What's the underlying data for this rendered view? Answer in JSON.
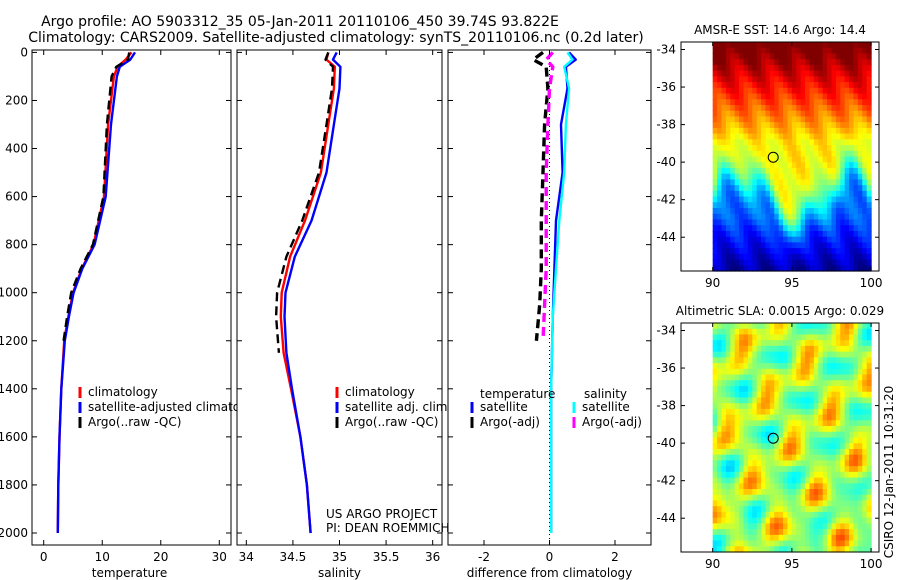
{
  "title_line1": "Argo profile: AO 5903312_35 05-Jan-2011 20110106_450 39.74S 93.822E",
  "title_line2": "Climatology: CARS2009. Satellite-adjusted climatology: synTS_20110106.nc (0.2d later)",
  "side_label": "CSIRO 12-Jan-2011 10:31:20",
  "colors": {
    "climatology": "#ff0000",
    "satellite": "#0000ff",
    "argo": "#000000",
    "satellite_salinity": "#00ffff",
    "argo_salinity": "#ff00ff"
  },
  "chart_data": [
    {
      "type": "line",
      "xlabel": "temperature",
      "ylabel": "",
      "xlim": [
        -2,
        32
      ],
      "ylim": [
        2050,
        -10
      ],
      "xticks": [
        0,
        10,
        20,
        30
      ],
      "yticks": [
        0,
        200,
        400,
        600,
        800,
        1000,
        1200,
        1400,
        1600,
        1800,
        2000
      ],
      "legend": [
        "climatology",
        "satellite-adjusted climatology",
        "Argo(..raw -QC)"
      ],
      "series": [
        {
          "name": "climatology",
          "color": "#ff0000",
          "style": "solid",
          "x": [
            15.0,
            14.0,
            12.6,
            12.0,
            11.0,
            10.3,
            8.5,
            6.5,
            5.0,
            4.2,
            3.5,
            3.0,
            2.7,
            2.5,
            2.4
          ],
          "y": [
            0,
            30,
            60,
            100,
            300,
            600,
            800,
            900,
            1000,
            1100,
            1200,
            1400,
            1600,
            1800,
            2000
          ]
        },
        {
          "name": "satellite-adjusted climatology",
          "color": "#0000ff",
          "style": "solid",
          "x": [
            15.6,
            14.8,
            13.0,
            12.5,
            11.5,
            10.6,
            8.7,
            6.6,
            5.1,
            4.3,
            3.6,
            3.0,
            2.7,
            2.5,
            2.4
          ],
          "y": [
            0,
            30,
            60,
            100,
            300,
            600,
            800,
            900,
            1000,
            1100,
            1200,
            1400,
            1600,
            1800,
            2000
          ]
        },
        {
          "name": "Argo(..raw -QC)",
          "color": "#000000",
          "style": "dashed",
          "x": [
            14.6,
            14.4,
            12.4,
            11.6,
            10.8,
            10.2,
            8.4,
            6.3,
            4.7,
            4.0,
            3.4
          ],
          "y": [
            0,
            30,
            60,
            100,
            300,
            600,
            800,
            900,
            1000,
            1100,
            1200
          ]
        }
      ]
    },
    {
      "type": "line",
      "xlabel": "salinity",
      "ylabel": "",
      "xlim": [
        33.9,
        36.1
      ],
      "ylim": [
        2050,
        -10
      ],
      "xticks": [
        34,
        34.5,
        35,
        35.5,
        36
      ],
      "legend": [
        "climatology",
        "satellite adj. clim.",
        "Argo(..raw -QC)"
      ],
      "annotation": [
        "US ARGO PROJECT",
        "PI: DEAN ROEMMICH"
      ],
      "series": [
        {
          "name": "climatology",
          "color": "#ff0000",
          "style": "solid",
          "x": [
            34.88,
            34.86,
            34.95,
            34.94,
            34.88,
            34.8,
            34.63,
            34.47,
            34.38,
            34.37,
            34.4,
            34.48,
            34.58,
            34.65,
            34.69
          ],
          "y": [
            0,
            30,
            60,
            150,
            300,
            500,
            700,
            850,
            1000,
            1100,
            1250,
            1400,
            1600,
            1800,
            2000
          ]
        },
        {
          "name": "satellite adj. clim.",
          "color": "#0000ff",
          "style": "solid",
          "x": [
            34.97,
            34.93,
            35.01,
            35.0,
            34.94,
            34.86,
            34.7,
            34.52,
            34.42,
            34.41,
            34.43,
            34.49,
            34.58,
            34.65,
            34.69
          ],
          "y": [
            0,
            30,
            60,
            150,
            300,
            500,
            700,
            850,
            1000,
            1100,
            1250,
            1400,
            1600,
            1800,
            2000
          ]
        },
        {
          "name": "Argo(..raw -QC)",
          "color": "#000000",
          "style": "dashed",
          "x": [
            34.88,
            34.85,
            34.93,
            34.92,
            34.86,
            34.78,
            34.6,
            34.43,
            34.33,
            34.32,
            34.35
          ],
          "y": [
            0,
            30,
            60,
            150,
            300,
            500,
            700,
            850,
            1000,
            1100,
            1250
          ]
        }
      ]
    },
    {
      "type": "line",
      "xlabel": "difference from climatology",
      "ylabel": "",
      "xlim": [
        -3.1,
        3.1
      ],
      "ylim": [
        2050,
        -10
      ],
      "xticks": [
        -2,
        0,
        2
      ],
      "legend_groups": [
        {
          "heading": "temperature",
          "items": [
            "satellite",
            "Argo(-adj)"
          ]
        },
        {
          "heading": "salinity",
          "items": [
            "satellite",
            "Argo(-adj)"
          ]
        }
      ],
      "series": [
        {
          "name": "temperature satellite",
          "color": "#0000ff",
          "style": "solid",
          "x": [
            0.6,
            0.8,
            0.5,
            0.55,
            0.35,
            0.4,
            0.2,
            0.15,
            0.1,
            0.05,
            0.05,
            0.05
          ],
          "y": [
            0,
            30,
            60,
            150,
            300,
            500,
            700,
            900,
            1100,
            1400,
            1700,
            2000
          ]
        },
        {
          "name": "salinity satellite",
          "color": "#00ffff",
          "style": "solid",
          "x": [
            0.55,
            0.7,
            0.45,
            0.6,
            0.5,
            0.45,
            0.3,
            0.2,
            0.1,
            0.05,
            0.05,
            0.05
          ],
          "y": [
            0,
            30,
            60,
            150,
            300,
            500,
            700,
            900,
            1100,
            1400,
            1700,
            2000
          ]
        },
        {
          "name": "temperature Argo(-adj)",
          "color": "#000000",
          "style": "dashed",
          "x": [
            -0.2,
            -0.5,
            -0.1,
            -0.05,
            -0.15,
            -0.2,
            -0.25,
            -0.25,
            -0.3,
            -0.4
          ],
          "y": [
            0,
            30,
            60,
            150,
            300,
            500,
            700,
            900,
            1050,
            1200
          ]
        },
        {
          "name": "salinity Argo(-adj)",
          "color": "#ff00ff",
          "style": "dashed",
          "x": [
            0.1,
            -0.1,
            0.1,
            0.0,
            -0.05,
            -0.1,
            -0.1,
            -0.1,
            -0.15,
            -0.2
          ],
          "y": [
            0,
            30,
            60,
            150,
            300,
            500,
            700,
            900,
            1050,
            1200
          ]
        }
      ]
    },
    {
      "type": "heatmap",
      "title": "AMSR-E SST: 14.6 Argo: 14.4",
      "xlim": [
        88,
        100.5
      ],
      "ylim": [
        -45.8,
        -33.6
      ],
      "xticks": [
        90,
        95,
        100
      ],
      "yticks": [
        -34,
        -36,
        -38,
        -40,
        -42,
        -44
      ],
      "data_xrange": [
        90,
        100
      ],
      "marker": {
        "lon": 93.822,
        "lat": -39.74
      }
    },
    {
      "type": "heatmap",
      "title": "Altimetric SLA: 0.0015 Argo: 0.029",
      "xlim": [
        88,
        100.5
      ],
      "ylim": [
        -45.8,
        -33.6
      ],
      "xticks": [
        90,
        95,
        100
      ],
      "yticks": [
        -34,
        -36,
        -38,
        -40,
        -42,
        -44
      ],
      "data_xrange": [
        90,
        100
      ],
      "marker": {
        "lon": 93.822,
        "lat": -39.74
      }
    }
  ]
}
